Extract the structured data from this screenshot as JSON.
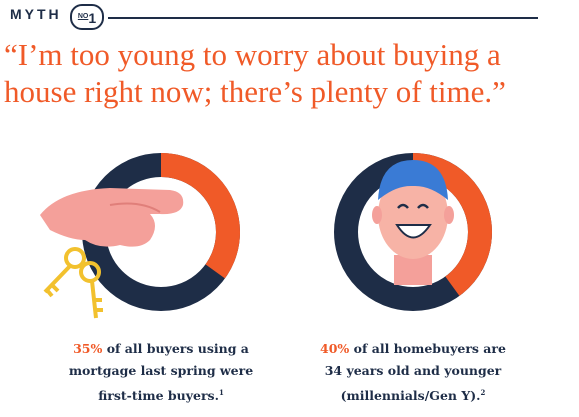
{
  "header": {
    "label": "MYTH",
    "badge_prefix": "NO",
    "badge_number": "1"
  },
  "quote": "“I’m too young to worry about buying a house right now; there’s plenty of time.”",
  "stats": [
    {
      "value": 35,
      "value_label": "35%",
      "text": "of all buyers using a mortgage last spring were first-time buyers.",
      "footnote": "1"
    },
    {
      "value": 40,
      "value_label": "40%",
      "text": "of all homebuyers are 34 years old and younger (millennials/Gen Y).",
      "footnote": "2"
    }
  ]
}
